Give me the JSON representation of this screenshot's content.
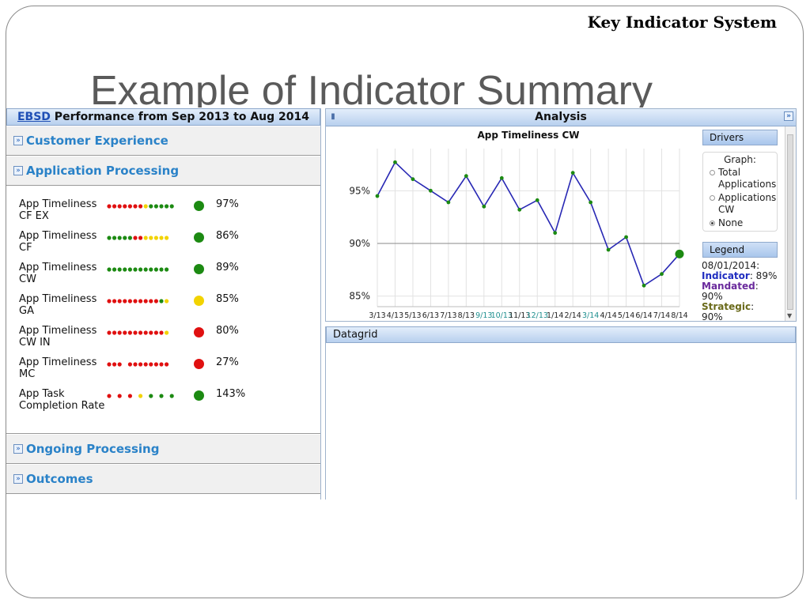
{
  "slide": {
    "header_system": "Key Indicator System",
    "title": "Example of Indicator Summary"
  },
  "left_panel": {
    "header_link": "EBSD",
    "header_rest": " Performance from Sep 2013 to Aug 2014",
    "sections": {
      "customer_experience": "Customer Experience",
      "application_processing": "Application Processing",
      "ongoing_processing": "Ongoing Processing",
      "outcomes": "Outcomes"
    },
    "indicators": [
      {
        "name": "App Timeliness CF EX",
        "status": "green",
        "pct": "97%",
        "dots": [
          "r",
          "r",
          "r",
          "r",
          "r",
          "r",
          "r",
          "y",
          "g",
          "g",
          "g",
          "g",
          "g"
        ]
      },
      {
        "name": "App Timeliness CF",
        "status": "green",
        "pct": "86%",
        "dots": [
          "g",
          "g",
          "g",
          "g",
          "g",
          "r",
          "r",
          "y",
          "y",
          "y",
          "y",
          "y"
        ]
      },
      {
        "name": "App Timeliness CW",
        "status": "green",
        "pct": "89%",
        "dots": [
          "g",
          "g",
          "g",
          "g",
          "g",
          "g",
          "g",
          "g",
          "g",
          "g",
          "g",
          "g"
        ]
      },
      {
        "name": "App Timeliness GA",
        "status": "yellow",
        "pct": "85%",
        "dots": [
          "r",
          "r",
          "r",
          "r",
          "r",
          "r",
          "r",
          "r",
          "r",
          "r",
          "g",
          "y"
        ]
      },
      {
        "name": "App Timeliness CW IN",
        "status": "red",
        "pct": "80%",
        "dots": [
          "r",
          "r",
          "r",
          "r",
          "r",
          "r",
          "r",
          "r",
          "r",
          "r",
          "r",
          "y"
        ]
      },
      {
        "name": "App Timeliness MC",
        "status": "red",
        "pct": "27%",
        "dots": [
          "r",
          "r",
          "r",
          "_",
          "r",
          "r",
          "r",
          "r",
          "r",
          "r",
          "r",
          "r"
        ]
      },
      {
        "name": "App Task Completion Rate",
        "status": "green",
        "pct": "143%",
        "dots": [
          "r",
          "_",
          "r",
          "_",
          "r",
          "_",
          "y",
          "_",
          "g",
          "_",
          "g",
          "_",
          "g"
        ]
      }
    ]
  },
  "analysis": {
    "header": "Analysis",
    "drivers_label": "Drivers",
    "graph_label": "Graph:",
    "radio_options": [
      {
        "label": "Total Applications",
        "checked": false
      },
      {
        "label": "Applications CW",
        "checked": false
      },
      {
        "label": "None",
        "checked": true
      }
    ],
    "legend_label": "Legend",
    "legend_lines": {
      "date": "08/01/2014:",
      "indicator_key": "Indicator",
      "indicator_val": ": 89%",
      "mandated_key": "Mandated",
      "mandated_val": ": 90%",
      "strategic_key": "Strategic",
      "strategic_val": ": 90%"
    }
  },
  "datagrid": {
    "header": "Datagrid"
  },
  "colors": {
    "red": "#e01010",
    "yellow": "#f2d300",
    "green": "#1c8a12",
    "series_line": "#2828b4",
    "indicator_text": "#1f2dc0",
    "mandated_text": "#6a2a9c",
    "strategic_text": "#6a6a1a",
    "highlight_tick": "#1f8f8f"
  },
  "chart_data": {
    "type": "line",
    "title": "App Timeliness CW",
    "xlabel": "",
    "ylabel": "",
    "x": [
      "3/13",
      "4/13",
      "5/13",
      "6/13",
      "7/13",
      "8/13",
      "9/13",
      "10/13",
      "11/13",
      "12/13",
      "1/14",
      "2/14",
      "3/14",
      "4/14",
      "5/14",
      "6/14",
      "7/14",
      "8/14"
    ],
    "x_tick_labels": [
      "3/13",
      "4/13",
      "5/13",
      "6/13",
      "7/13",
      "8/13",
      "9/13",
      "10/13",
      "11/13",
      "12/13",
      "1/14",
      "2/14",
      "3/14",
      "4/14",
      "5/14",
      "6/14",
      "7/14",
      "8/14"
    ],
    "highlighted_ticks": [
      "9/13",
      "10/13",
      "12/13",
      "3/14"
    ],
    "series": [
      {
        "values": [
          94.5,
          97.7,
          96.1,
          95.0,
          93.9,
          96.4,
          93.5,
          96.2,
          93.2,
          94.1,
          91.0,
          96.7,
          93.9,
          89.4,
          90.6,
          86.0,
          87.1,
          89.0
        ]
      }
    ],
    "reference_line": 90,
    "ylim": [
      84,
      99
    ],
    "y_ticks": [
      85,
      90,
      95
    ],
    "y_tick_labels": [
      "85%",
      "90%",
      "95%"
    ],
    "grid": true
  }
}
